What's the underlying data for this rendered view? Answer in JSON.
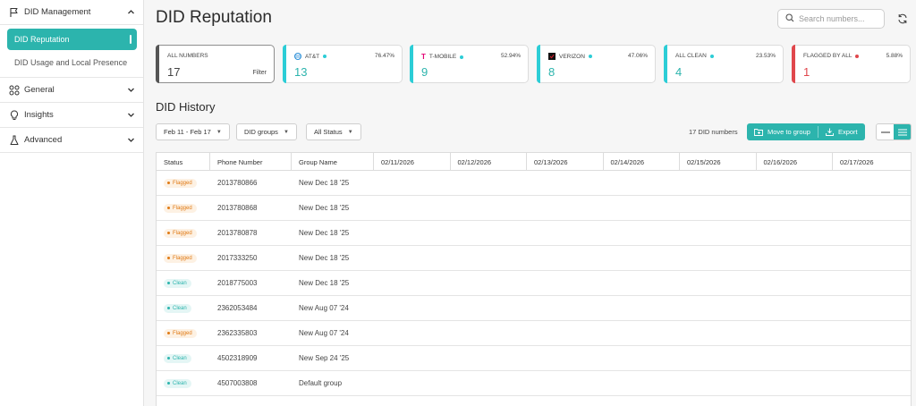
{
  "sidebar": {
    "did_management": "DID Management",
    "active_item": "DID Reputation",
    "sub_item": "DID Usage and Local Presence",
    "general": "General",
    "insights": "Insights",
    "advanced": "Advanced"
  },
  "header": {
    "title": "DID Reputation",
    "search_placeholder": "Search numbers..."
  },
  "cards": {
    "all": {
      "name": "ALL NUMBERS",
      "count": "17",
      "filter": "Filter"
    },
    "att": {
      "name": "AT&T",
      "pct": "76.47%",
      "count": "13",
      "accent": "#2ccdd6"
    },
    "tmobile": {
      "name": "T-MOBILE",
      "pct": "52.94%",
      "count": "9",
      "accent": "#2ccdd6"
    },
    "verizon": {
      "name": "VERIZON",
      "pct": "47.06%",
      "count": "8",
      "accent": "#2ccdd6"
    },
    "clean": {
      "name": "ALL CLEAN",
      "pct": "23.53%",
      "count": "4",
      "accent": "#2ccdd6"
    },
    "flagged": {
      "name": "FLAGGED BY ALL",
      "pct": "5.88%",
      "count": "1",
      "accent": "#e0474c"
    }
  },
  "history": {
    "title": "DID History",
    "date_filter": "Feb 11 - Feb 17",
    "groups_filter": "DID groups",
    "status_filter": "All Status",
    "count_label": "17 DID numbers",
    "move_button": "Move to group",
    "export_button": "Export"
  },
  "table": {
    "headers": {
      "status": "Status",
      "phone": "Phone Number",
      "group": "Group Name",
      "d1": "02/11/2026",
      "d2": "02/12/2026",
      "d3": "02/13/2026",
      "d4": "02/14/2026",
      "d5": "02/15/2026",
      "d6": "02/16/2026",
      "d7": "02/17/2026"
    },
    "rows": [
      {
        "status": "Flagged",
        "phone": "2013780866",
        "group": "New Dec 18 '25"
      },
      {
        "status": "Flagged",
        "phone": "2013780868",
        "group": "New Dec 18 '25"
      },
      {
        "status": "Flagged",
        "phone": "2013780878",
        "group": "New Dec 18 '25"
      },
      {
        "status": "Flagged",
        "phone": "2017333250",
        "group": "New Dec 18 '25"
      },
      {
        "status": "Clean",
        "phone": "2018775003",
        "group": "New Dec 18 '25"
      },
      {
        "status": "Clean",
        "phone": "2362053484",
        "group": "New Aug 07 '24"
      },
      {
        "status": "Flagged",
        "phone": "2362335803",
        "group": "New Aug 07 '24"
      },
      {
        "status": "Clean",
        "phone": "4502318909",
        "group": "New Sep 24 '25"
      },
      {
        "status": "Clean",
        "phone": "4507003808",
        "group": "Default group"
      }
    ]
  },
  "colors": {
    "accent": "#2cb4ad",
    "flagged": "#e07a15",
    "danger": "#e0474c"
  }
}
